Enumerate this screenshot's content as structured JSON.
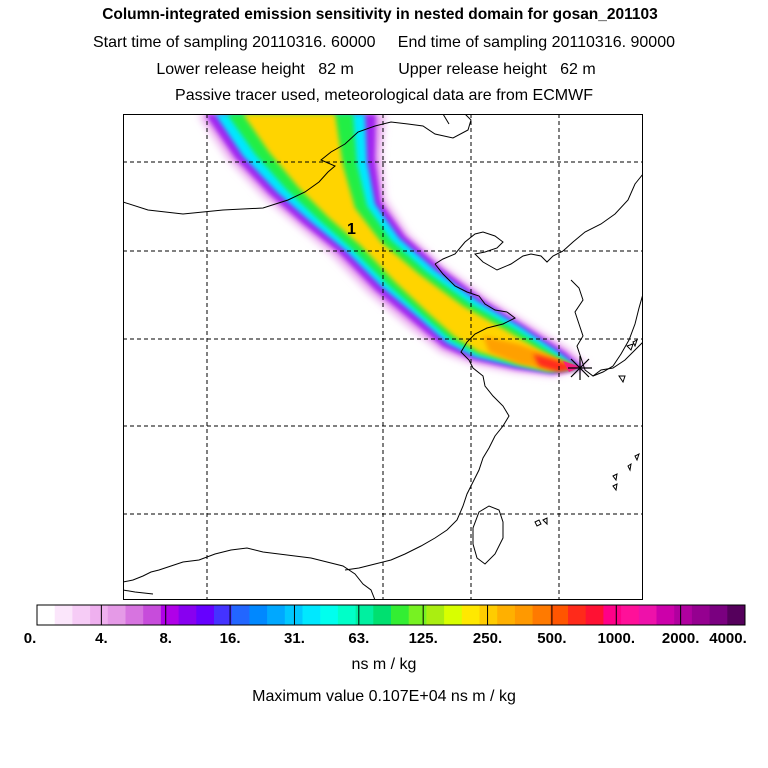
{
  "header": {
    "title": "Column-integrated emission sensitivity in nested domain for gosan_201103",
    "sampling_line": "Start time of sampling 20110316. 60000     End time of sampling 20110316. 90000",
    "release_line": "Lower release height   82 m          Upper release height   62 m",
    "tracer_line": "Passive tracer used, meteorological data are from ECMWF"
  },
  "map": {
    "plume_label": "1",
    "release_site_icon": "asterisk-icon",
    "colors": {
      "coast": "#000000",
      "grid": "#000000",
      "frame": "#000000"
    }
  },
  "colorbar": {
    "tick_labels": [
      "0.",
      "4.",
      "8.",
      "16.",
      "31.",
      "63.",
      "125.",
      "250.",
      "500.",
      "1000.",
      "2000.",
      "4000."
    ],
    "colors": [
      "#ffffff",
      "#fbe6fb",
      "#f6ccf6",
      "#efb0ef",
      "#e59ae7",
      "#d774e0",
      "#c74cdb",
      "#b000e8",
      "#8800f0",
      "#6600ff",
      "#4433ff",
      "#2266ff",
      "#0088ff",
      "#00a8ff",
      "#00c8ff",
      "#00e8ff",
      "#00ffee",
      "#00ffc8",
      "#00f0a0",
      "#00e070",
      "#33ee33",
      "#77f222",
      "#aaee11",
      "#d8ff00",
      "#ffe800",
      "#ffcc00",
      "#ffb000",
      "#ff9900",
      "#ff7a00",
      "#ff5500",
      "#ff2a1a",
      "#ff1133",
      "#ff0088",
      "#ff1099",
      "#ee11aa",
      "#cc00aa",
      "#b0009f",
      "#950090",
      "#7a0080",
      "#55005c"
    ],
    "units": "ns m / kg",
    "max_value_text": "Maximum value  0.107E+04 ns m / kg"
  }
}
